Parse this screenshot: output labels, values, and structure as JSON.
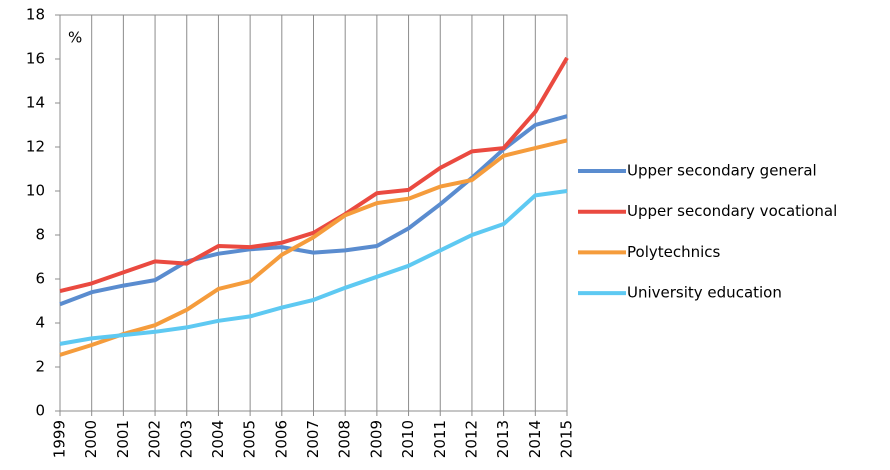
{
  "chart_data": {
    "type": "line",
    "annotation": "%",
    "categories": [
      "1999",
      "2000",
      "2001",
      "2002",
      "2003",
      "2004",
      "2005",
      "2006",
      "2007",
      "2008",
      "2009",
      "2010",
      "2011",
      "2012",
      "2013",
      "2014",
      "2015"
    ],
    "series": [
      {
        "name": "Upper secondary general",
        "color": "#5a8ccf",
        "values": [
          4.85,
          5.4,
          5.7,
          5.95,
          6.8,
          7.15,
          7.35,
          7.45,
          7.2,
          7.3,
          7.5,
          8.3,
          9.4,
          10.6,
          11.9,
          13.0,
          13.4
        ]
      },
      {
        "name": "Upper secondary vocational",
        "color": "#ea4a40",
        "values": [
          5.45,
          5.8,
          6.3,
          6.8,
          6.7,
          7.5,
          7.45,
          7.65,
          8.1,
          8.95,
          9.9,
          10.05,
          11.05,
          11.8,
          11.95,
          13.6,
          16.05
        ]
      },
      {
        "name": "Polytechnics",
        "color": "#f59c3c",
        "values": [
          2.55,
          3.0,
          3.5,
          3.9,
          4.6,
          5.55,
          5.9,
          7.1,
          7.9,
          8.9,
          9.45,
          9.65,
          10.2,
          10.5,
          11.6,
          11.95,
          12.3
        ]
      },
      {
        "name": "University education",
        "color": "#5ec9f2",
        "values": [
          3.05,
          3.3,
          3.45,
          3.6,
          3.8,
          4.1,
          4.3,
          4.7,
          5.05,
          5.6,
          6.1,
          6.6,
          7.3,
          8.0,
          8.5,
          9.8,
          10.0
        ]
      }
    ],
    "ylim": [
      0,
      18
    ],
    "yticks": [
      0,
      2,
      4,
      6,
      8,
      10,
      12,
      14,
      16,
      18
    ],
    "vertical_grid": true,
    "legend": "right"
  }
}
